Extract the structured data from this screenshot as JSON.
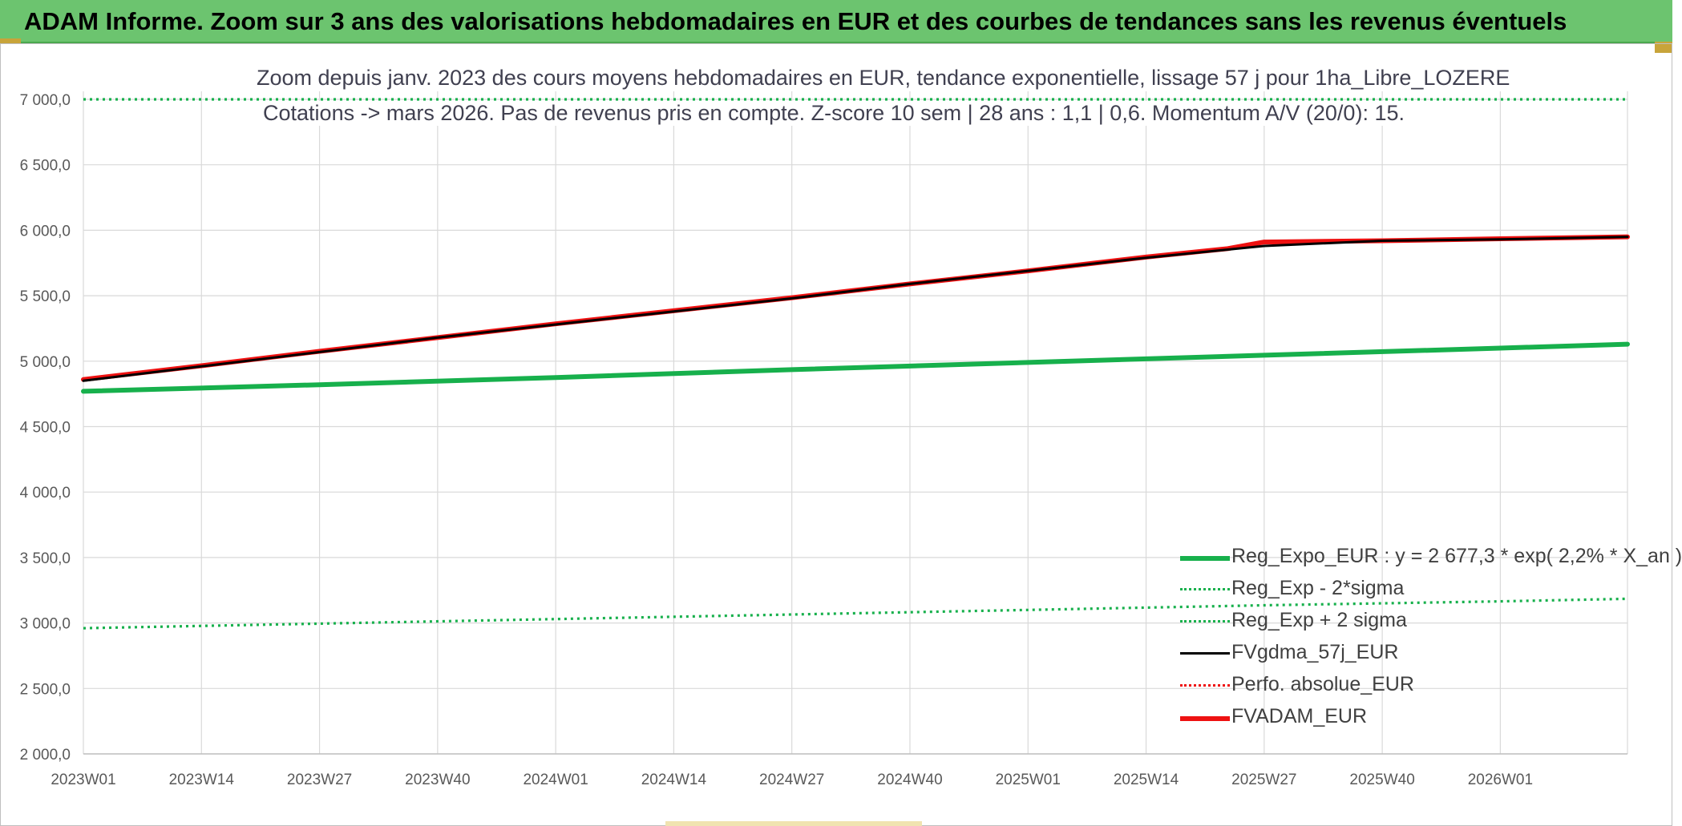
{
  "header": {
    "title": "ADAM Informe. Zoom sur 3 ans des valorisations hebdomadaires en EUR et des courbes de tendances sans les revenus éventuels"
  },
  "colors": {
    "header_bg": "#6cc46f",
    "green": "#17b04c",
    "black": "#000000",
    "red": "#ee1111",
    "grid": "#d9d9d9"
  },
  "chart_data": {
    "type": "line",
    "title": "Zoom depuis janv. 2023 des cours moyens hebdomadaires en EUR, tendance exponentielle, lissage 57 j pour 1ha_Libre_LOZERE",
    "subtitle": "Cotations -> mars 2026. Pas de revenus pris en compte. Z-score 10 sem | 28 ans : 1,1 | 0,6. Momentum A/V (20/0): 15.",
    "ylim": [
      2000,
      7000
    ],
    "grid": true,
    "legend_position": "bottom-right",
    "y_ticks": [
      "2 000,0",
      "2 500,0",
      "3 000,0",
      "3 500,0",
      "4 000,0",
      "4 500,0",
      "5 000,0",
      "5 500,0",
      "6 000,0",
      "6 500,0",
      "7 000,0"
    ],
    "x_ticks": [
      "2023W01",
      "2023W14",
      "2023W27",
      "2023W40",
      "2024W01",
      "2024W14",
      "2024W27",
      "2024W40",
      "2025W01",
      "2025W14",
      "2025W27",
      "2025W40",
      "2026W01"
    ],
    "x_range_weeks": [
      0,
      170
    ],
    "series": [
      {
        "name": "Reg_Expo_EUR : y = 2 677,3 * exp( 2,2% *  X_an )",
        "style": "solid-thick",
        "color": "#17b04c",
        "x": [
          0,
          26,
          52,
          78,
          104,
          130,
          156,
          170
        ],
        "values": [
          4770,
          4820,
          4875,
          4935,
          4990,
          5045,
          5100,
          5130
        ]
      },
      {
        "name": "Reg_Exp - 2*sigma",
        "style": "dotted",
        "color": "#17b04c",
        "x": [
          0,
          26,
          52,
          78,
          104,
          130,
          156,
          170
        ],
        "values": [
          2960,
          2995,
          3030,
          3065,
          3100,
          3135,
          3165,
          3185
        ]
      },
      {
        "name": "Reg_Exp + 2 sigma",
        "style": "dotted",
        "color": "#17b04c",
        "x": [
          0,
          170
        ],
        "values": [
          7000,
          7000
        ]
      },
      {
        "name": "FVgdma_57j_EUR",
        "style": "solid",
        "color": "#000000",
        "x": [
          0,
          13,
          26,
          39,
          52,
          65,
          78,
          91,
          104,
          117,
          130,
          143,
          156,
          170
        ],
        "values": [
          4850,
          4960,
          5070,
          5180,
          5280,
          5380,
          5480,
          5590,
          5690,
          5790,
          5880,
          5920,
          5930,
          5950
        ]
      },
      {
        "name": "Perfo. absolue_EUR",
        "style": "dotted",
        "color": "#ee1111",
        "x": [],
        "values": []
      },
      {
        "name": "FVADAM_EUR",
        "style": "solid-thick",
        "color": "#ee1111",
        "x": [
          0,
          13,
          26,
          39,
          52,
          65,
          78,
          91,
          104,
          117,
          126,
          130,
          143,
          156,
          170
        ],
        "values": [
          4860,
          4965,
          5075,
          5180,
          5285,
          5385,
          5485,
          5590,
          5690,
          5795,
          5860,
          5910,
          5920,
          5935,
          5950
        ]
      }
    ]
  }
}
